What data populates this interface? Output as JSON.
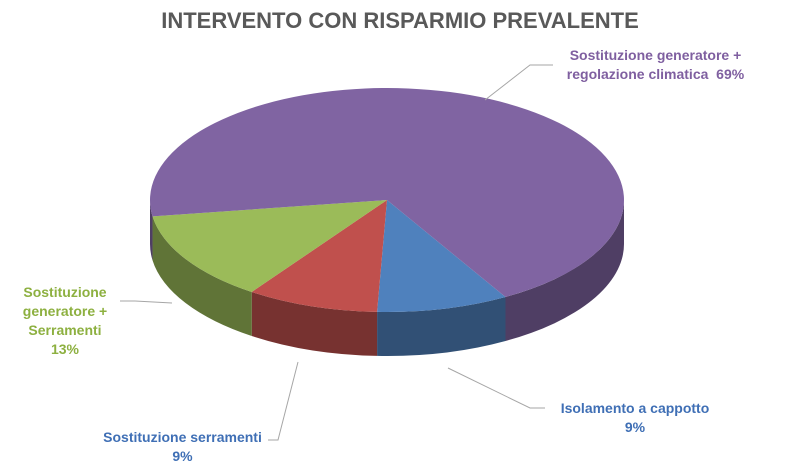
{
  "chart_data": {
    "type": "pie3d",
    "title": "INTERVENTO CON RISPARMIO PREVALENTE",
    "categories": [
      "Isolamento a cappotto",
      "Sostituzione serramenti",
      "Sostituzione generatore + Serramenti",
      "Sostituzione generatore + regolazione climatica"
    ],
    "values": [
      9,
      9,
      13,
      69
    ],
    "value_labels": [
      "9%",
      "9%",
      "13%",
      "69%"
    ],
    "colors": [
      "#4f81bd",
      "#c0504d",
      "#9bbb59",
      "#8064a2"
    ],
    "label_colors": [
      "#3f6fb5",
      "#3f6fb5",
      "#8db040",
      "#7f5fa0"
    ]
  }
}
